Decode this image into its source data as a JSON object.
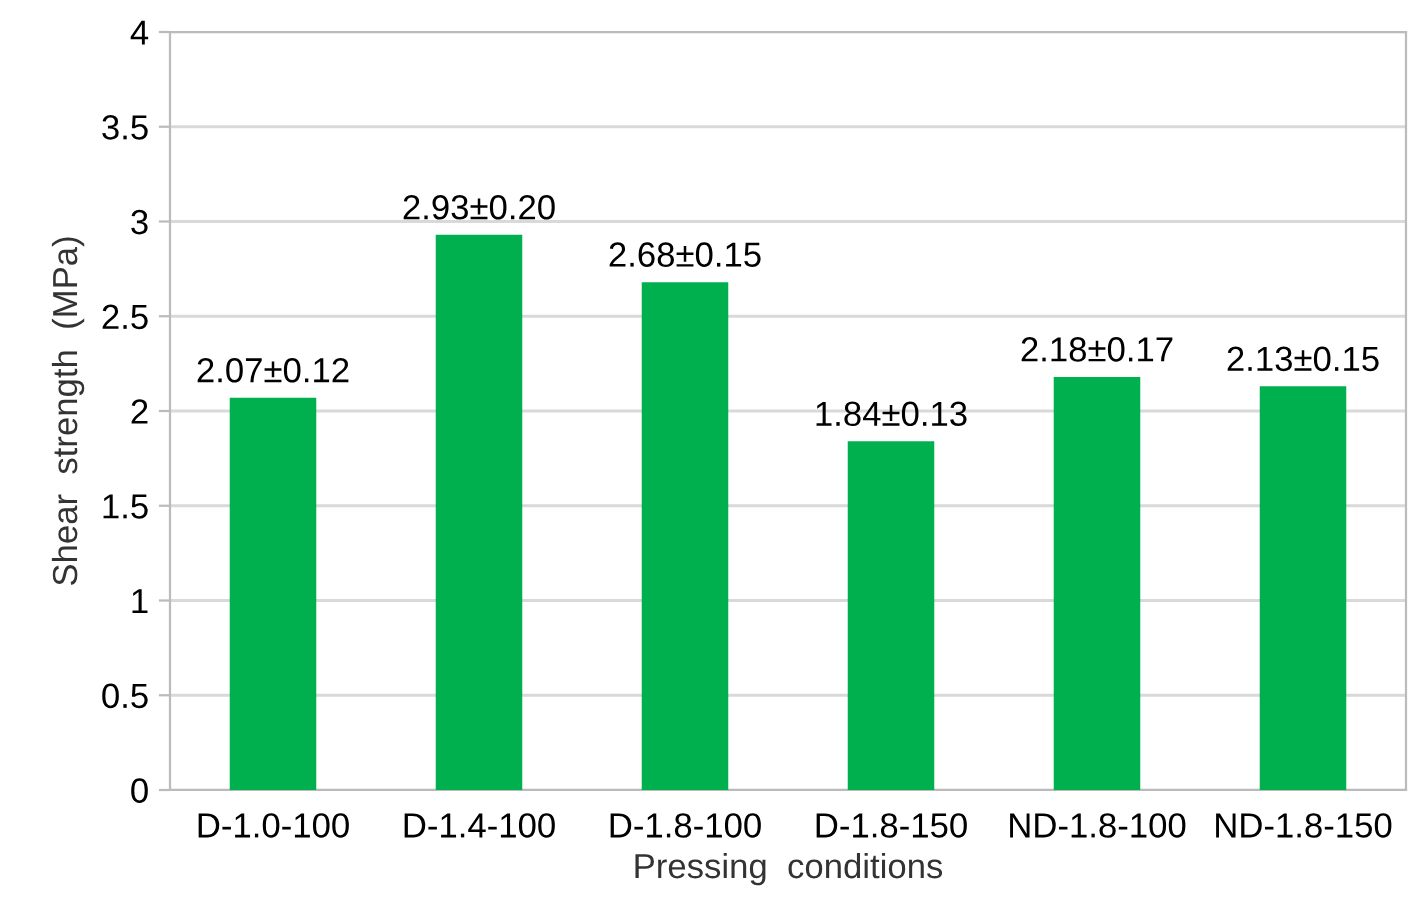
{
  "chart_data": {
    "type": "bar",
    "xlabel": "Pressing  conditions",
    "ylabel": "Shear  strength  (MPa)",
    "categories": [
      "D-1.0-100",
      "D-1.4-100",
      "D-1.8-100",
      "D-1.8-150",
      "ND-1.8-100",
      "ND-1.8-150"
    ],
    "values": [
      2.07,
      2.93,
      2.68,
      1.84,
      2.18,
      2.13
    ],
    "value_labels": [
      "2.07±0.12",
      "2.93±0.20",
      "2.68±0.15",
      "1.84±0.13",
      "2.18±0.17",
      "2.13±0.15"
    ],
    "color": "#00b04f",
    "ylim": [
      0,
      4
    ],
    "yticks": [
      0,
      {
        "value": 0.5,
        "label": "0.5"
      },
      1,
      {
        "value": 1.5,
        "label": "1.5"
      },
      2,
      {
        "value": 2.5,
        "label": "2.5"
      },
      3,
      {
        "value": 3.5,
        "label": "3.5"
      },
      4
    ],
    "grid": "y"
  }
}
